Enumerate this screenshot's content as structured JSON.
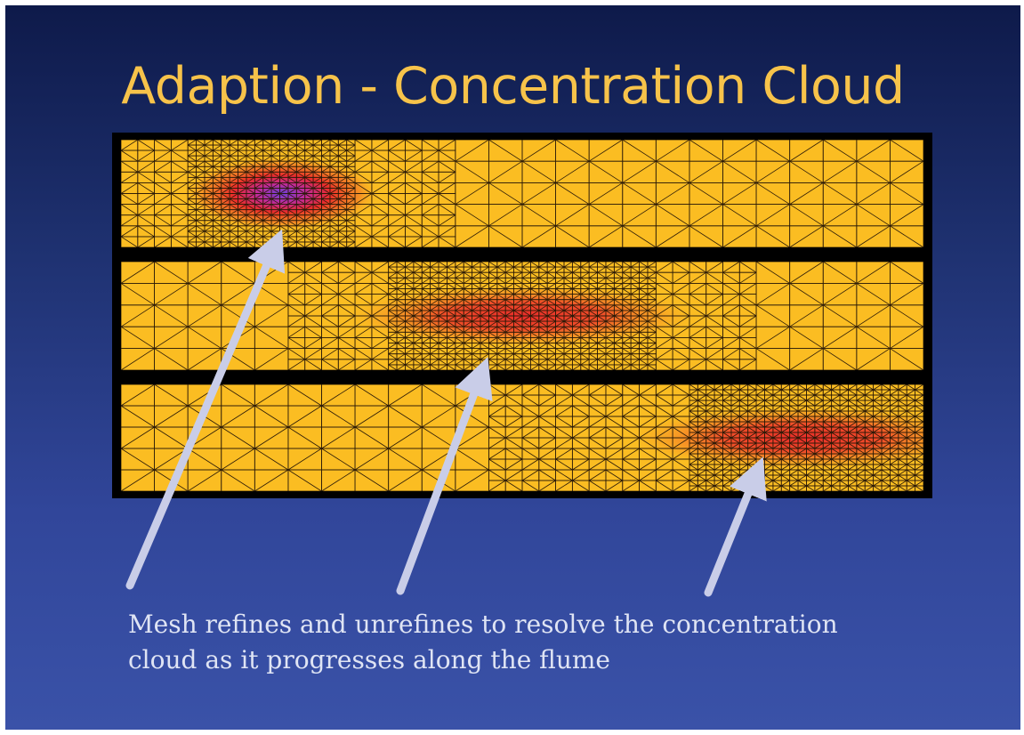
{
  "slide": {
    "title": "Adaption - Concentration Cloud",
    "caption_lines": [
      "Mesh refines and unrefines to resolve the concentration",
      "cloud as it progresses along the flume"
    ]
  },
  "panels": [
    {
      "name": "panel-time-1",
      "cloud_position": 0.2,
      "cloud_peak": "high",
      "refined_region": [
        0.02,
        0.42
      ]
    },
    {
      "name": "panel-time-2",
      "cloud_position": 0.5,
      "cloud_peak": "medium",
      "refined_region": [
        0.2,
        0.8
      ]
    },
    {
      "name": "panel-time-3",
      "cloud_position": 0.85,
      "cloud_peak": "medium",
      "refined_region": [
        0.45,
        0.98
      ]
    }
  ],
  "colors": {
    "title": "#f7c34a",
    "mesh_background": "#fbbd22",
    "cloud_core_high": "#6a3fd6",
    "cloud_red": "#e8242a",
    "arrow": "#c9cde8",
    "caption": "#dfe4f4"
  }
}
